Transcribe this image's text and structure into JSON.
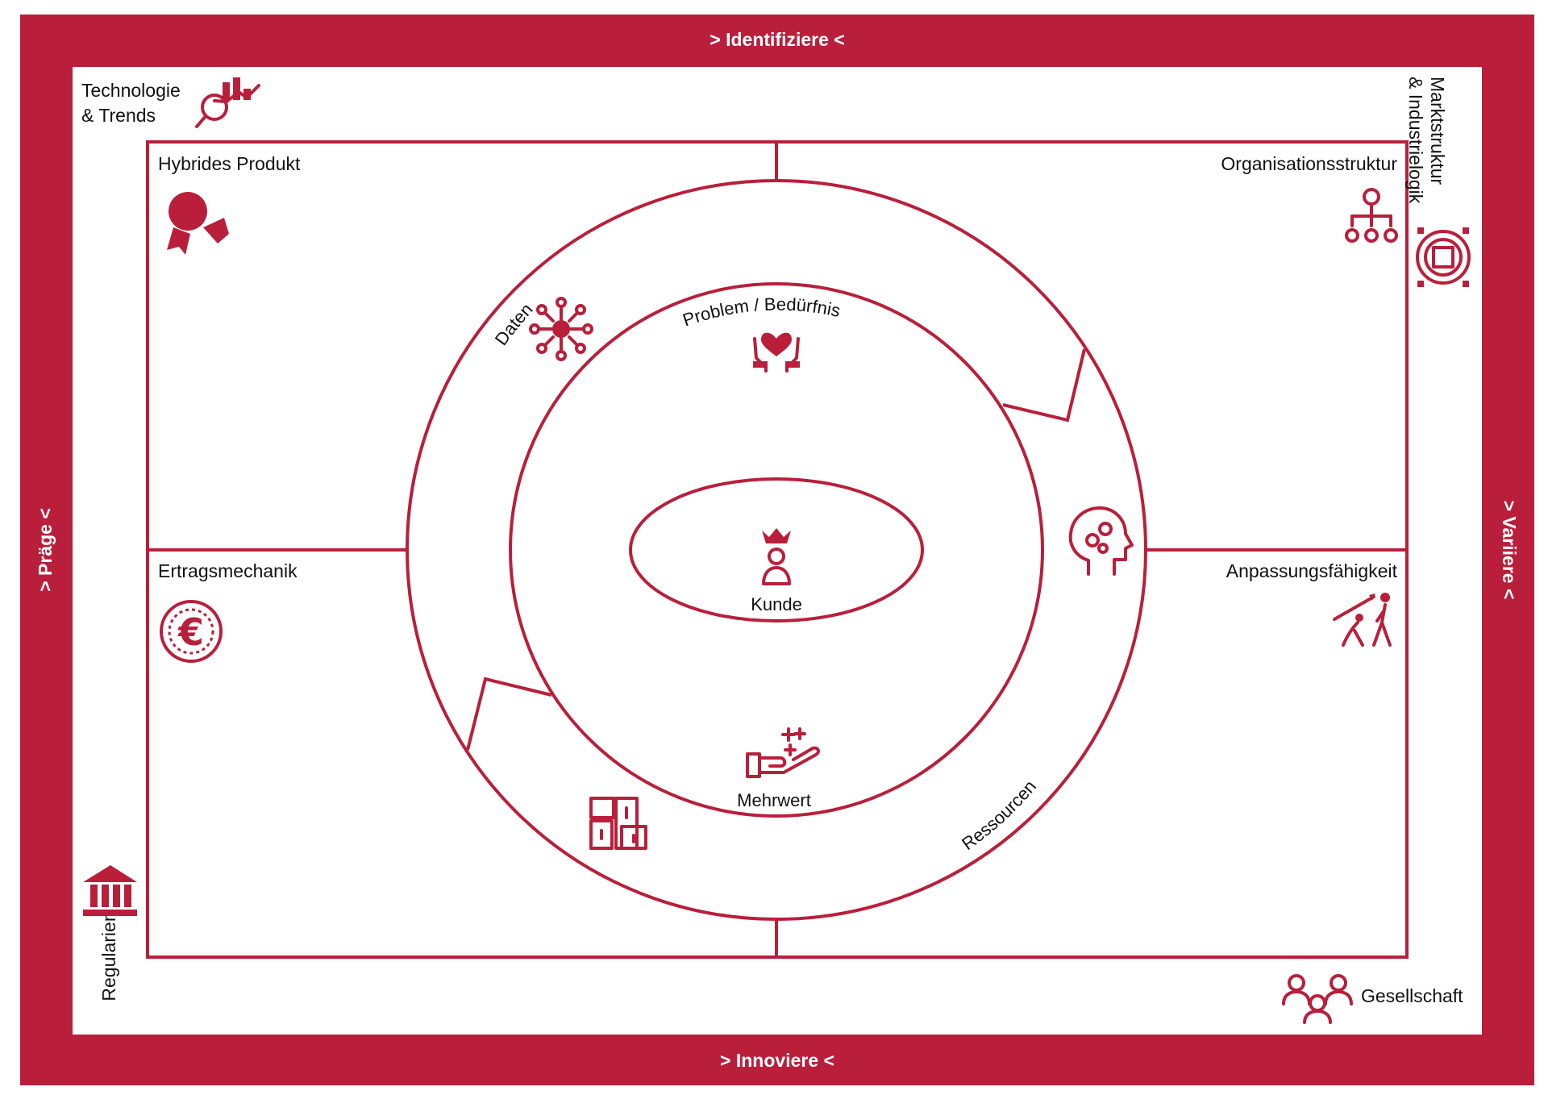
{
  "frame": {
    "top": "> Identifiziere <",
    "bottom": "> Innoviere <",
    "left": "> Präge <",
    "right": "> Variiere <"
  },
  "outer_factors": {
    "technology": [
      "Technologie",
      "& Trends"
    ],
    "market": [
      "Marktstruktur",
      "& Industrielogik"
    ],
    "regulation": "Regularien",
    "society": "Gesellschaft"
  },
  "quadrants": {
    "top_left": "Hybrides Produkt",
    "top_right": "Organisationsstruktur",
    "bottom_left": "Ertragsmechanik",
    "bottom_right": "Anpassungsfähigkeit"
  },
  "rings": {
    "daten": "Daten",
    "ressourcen": "Ressourcen",
    "problem": "Problem / Bedürfnis",
    "mehrwert": "Mehrwert",
    "kunde": "Kunde"
  },
  "icons": [
    "analytics-icon",
    "org-chart-icon",
    "market-structure-icon",
    "product-icon",
    "network-data-icon",
    "hands-heart-icon",
    "brain-gears-icon",
    "euro-coin-icon",
    "evolution-icon",
    "crowned-person-icon",
    "giving-hand-icon",
    "boxes-icon",
    "bank-building-icon",
    "people-group-icon"
  ],
  "colors": {
    "accent": "#b91f3b",
    "background": "#ffffff",
    "text": "#111111"
  }
}
